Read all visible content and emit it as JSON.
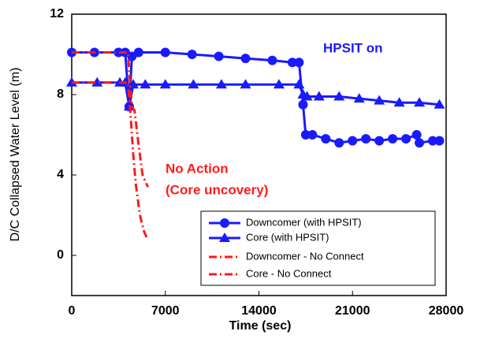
{
  "chart_data": {
    "type": "line",
    "xlabel": "Time (sec)",
    "ylabel": "D/C  Collapsed Water Level (m)",
    "xlim": [
      0,
      28000
    ],
    "xticks": [
      0,
      7000,
      14000,
      21000,
      28000
    ],
    "ylim": [
      -2,
      12
    ],
    "yticks": [
      0,
      4,
      8,
      12
    ],
    "legend": "lower right",
    "annotations": [
      {
        "text": "HPSIT on",
        "color": "#1a1aff"
      },
      {
        "text": "No Action",
        "color": "#ff1a1a"
      },
      {
        "text": "(Core uncovery)",
        "color": "#ff1a1a"
      }
    ],
    "series": [
      {
        "name": "Downcomer (with HPSIT)",
        "color": "#1a1aff",
        "style": "solid",
        "marker": "circle",
        "x": [
          0,
          1700,
          3500,
          4000,
          4300,
          4500,
          5000,
          7000,
          9000,
          11000,
          13000,
          15000,
          16500,
          17000,
          17300,
          17500,
          18000,
          19000,
          20000,
          21000,
          22000,
          23000,
          24000,
          25000,
          25800,
          26000,
          27000,
          27500
        ],
        "values": [
          10.1,
          10.1,
          10.1,
          10.1,
          7.4,
          9.9,
          10.1,
          10.1,
          10.0,
          9.9,
          9.8,
          9.7,
          9.6,
          9.6,
          7.5,
          6.0,
          6.0,
          5.8,
          5.6,
          5.7,
          5.8,
          5.7,
          5.8,
          5.8,
          6.0,
          5.6,
          5.7,
          5.7
        ]
      },
      {
        "name": "Core (with HPSIT)",
        "color": "#1a1aff",
        "style": "solid",
        "marker": "triangle",
        "x": [
          0,
          1900,
          3600,
          4000,
          4300,
          4600,
          5500,
          7000,
          9100,
          11200,
          13000,
          15500,
          17000,
          17300,
          17600,
          18500,
          20000,
          21500,
          23000,
          24500,
          26000,
          27500
        ],
        "values": [
          8.6,
          8.6,
          8.6,
          8.6,
          7.4,
          8.5,
          8.5,
          8.5,
          8.5,
          8.5,
          8.5,
          8.5,
          8.5,
          8.0,
          7.9,
          7.9,
          7.9,
          7.8,
          7.7,
          7.6,
          7.6,
          7.5
        ]
      },
      {
        "name": "Downcomer - No Connect",
        "color": "#ff1a1a",
        "style": "dash-dot",
        "marker": null,
        "x": [
          0,
          4200,
          4500,
          4700,
          5000,
          5300,
          5700
        ],
        "values": [
          10.1,
          10.1,
          7.4,
          7.2,
          5.5,
          4.0,
          3.4
        ]
      },
      {
        "name": "Core - No Connect",
        "color": "#ff1a1a",
        "style": "dash-dot",
        "marker": null,
        "x": [
          0,
          4200,
          4400,
          4600,
          4800,
          5100,
          5400,
          5600
        ],
        "values": [
          8.6,
          8.6,
          7.0,
          5.0,
          3.5,
          2.0,
          1.2,
          0.9
        ]
      }
    ]
  }
}
